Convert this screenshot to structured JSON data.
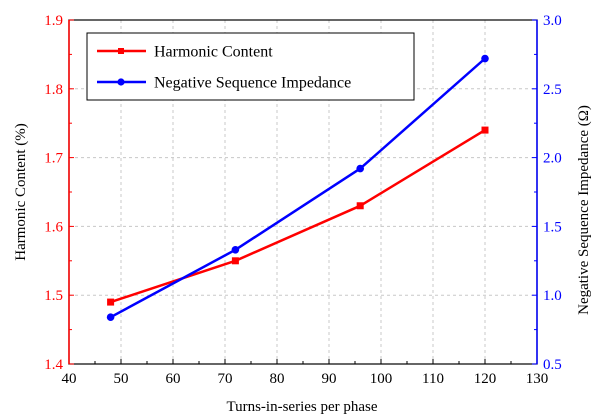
{
  "chart_data": {
    "type": "line",
    "xlabel": "Turns-in-series per phase",
    "ylabel_left": "Harmonic Content (%)",
    "ylabel_right": "Negative Sequence Impedance (Ω)",
    "xlim": [
      40,
      130
    ],
    "xticks": [
      40,
      50,
      60,
      70,
      80,
      90,
      100,
      110,
      120,
      130
    ],
    "ylim_left": [
      1.4,
      1.9
    ],
    "yticks_left": [
      "1.4",
      "1.5",
      "1.6",
      "1.7",
      "1.8",
      "1.9"
    ],
    "ylim_right": [
      0.5,
      3.0
    ],
    "yticks_right": [
      "0.5",
      "1.0",
      "1.5",
      "2.0",
      "2.5",
      "3.0"
    ],
    "grid": true,
    "legend_position": "top-left",
    "series": [
      {
        "name": "Harmonic Content",
        "axis": "left",
        "marker": "square",
        "color": "#ff0000",
        "x": [
          48,
          72,
          96,
          120
        ],
        "y": [
          1.49,
          1.55,
          1.63,
          1.74
        ]
      },
      {
        "name": "Negative Sequence Impedance",
        "axis": "right",
        "marker": "circle",
        "color": "#0000ff",
        "x": [
          48,
          72,
          96,
          120
        ],
        "y": [
          0.84,
          1.33,
          1.92,
          2.72
        ]
      }
    ],
    "colors": {
      "left_axis": "#ff0000",
      "right_axis": "#0000ff",
      "grid": "#c8c8c8",
      "frame": "#000000"
    }
  }
}
